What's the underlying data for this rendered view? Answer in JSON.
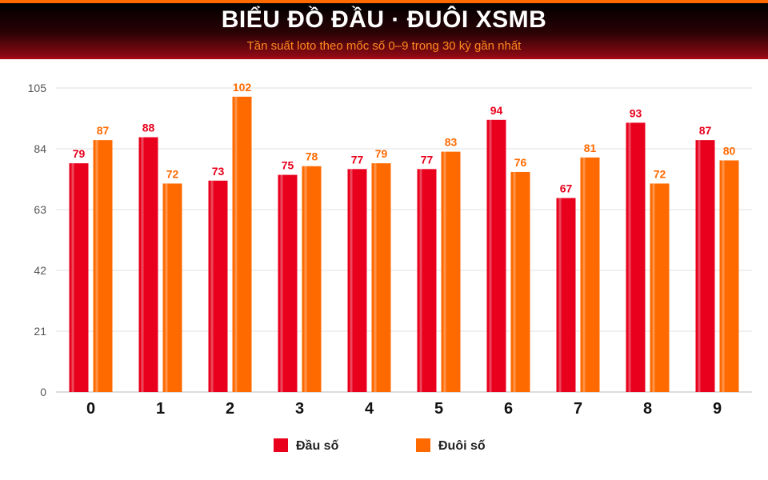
{
  "header": {
    "title": "BIỂU ĐỒ ĐẦU · ĐUÔI XSMB",
    "subtitle": "Tần suất loto theo mốc số 0–9 trong 30 kỳ gần nhất"
  },
  "chart_data": {
    "type": "bar",
    "categories": [
      "0",
      "1",
      "2",
      "3",
      "4",
      "5",
      "6",
      "7",
      "8",
      "9"
    ],
    "series": [
      {
        "name": "Đầu số",
        "color": "#e8001c",
        "values": [
          79,
          88,
          73,
          75,
          77,
          77,
          94,
          67,
          93,
          87
        ]
      },
      {
        "name": "Đuôi số",
        "color": "#ff6a00",
        "values": [
          87,
          72,
          102,
          78,
          79,
          83,
          76,
          81,
          72,
          80
        ]
      }
    ],
    "ylim": [
      0,
      105
    ],
    "yticks": [
      0,
      21,
      42,
      63,
      84,
      105
    ],
    "grid": true,
    "legend_position": "bottom-center"
  }
}
